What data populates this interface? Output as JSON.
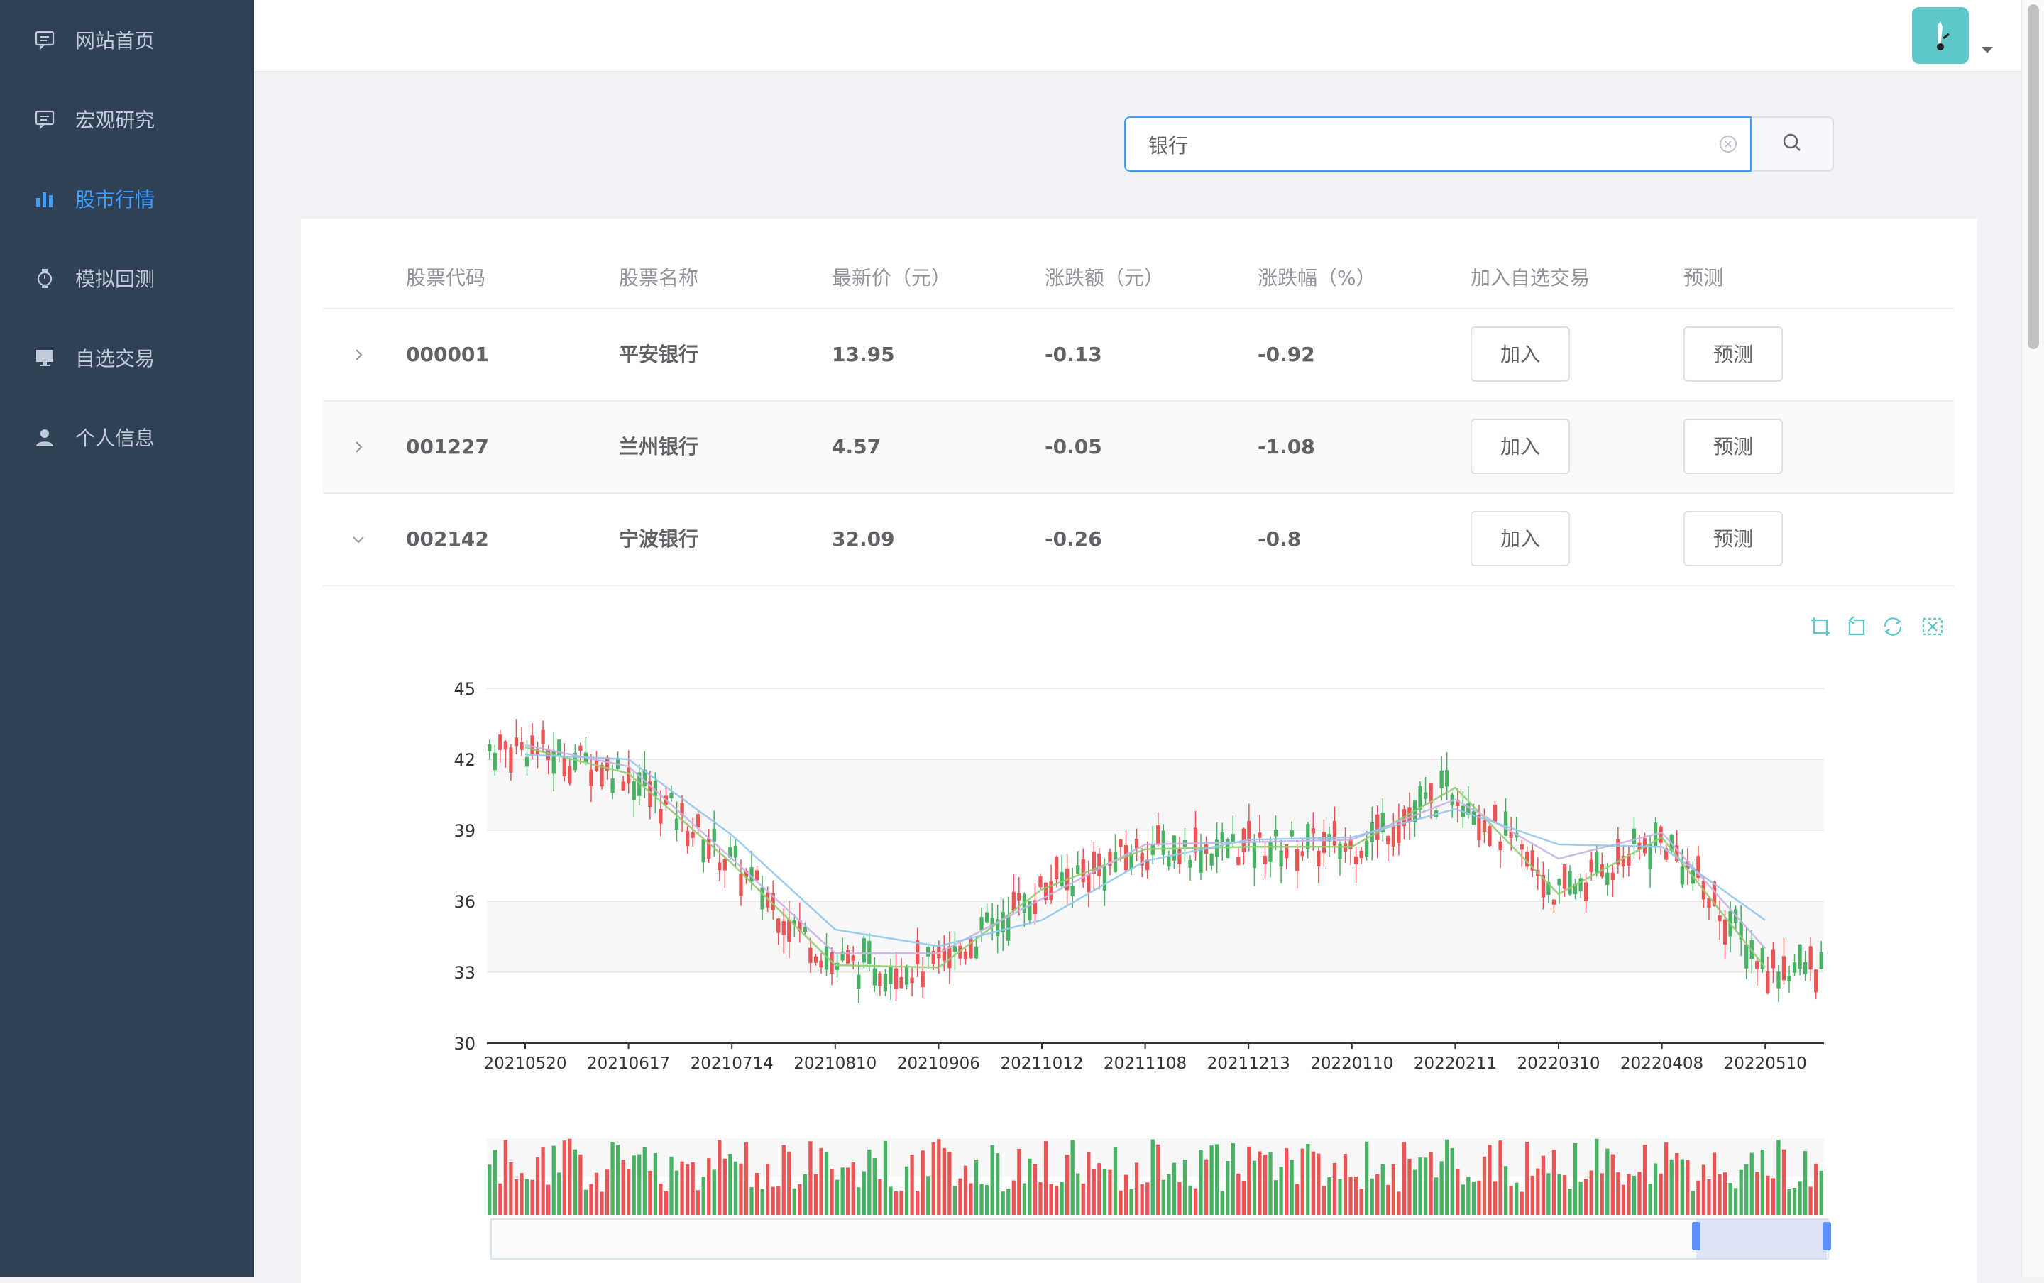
{
  "nav": [
    {
      "label": "网站首页",
      "icon": "message-icon"
    },
    {
      "label": "宏观研究",
      "icon": "message-icon"
    },
    {
      "label": "股市行情",
      "icon": "bar-chart-icon",
      "active": true
    },
    {
      "label": "模拟回测",
      "icon": "watch-icon"
    },
    {
      "label": "自选交易",
      "icon": "monitor-icon"
    },
    {
      "label": "个人信息",
      "icon": "user-icon"
    }
  ],
  "search": {
    "value": "银行"
  },
  "table": {
    "headers": [
      "股票代码",
      "股票名称",
      "最新价（元）",
      "涨跌额（元）",
      "涨跌幅（%）",
      "加入自选交易",
      "预测"
    ],
    "rows": [
      {
        "code": "000001",
        "name": "平安银行",
        "price": "13.95",
        "change": "-0.13",
        "pct": "-0.92",
        "add": "加入",
        "predict": "预测",
        "expanded": false
      },
      {
        "code": "001227",
        "name": "兰州银行",
        "price": "4.57",
        "change": "-0.05",
        "pct": "-1.08",
        "add": "加入",
        "predict": "预测",
        "expanded": false
      },
      {
        "code": "002142",
        "name": "宁波银行",
        "price": "32.09",
        "change": "-0.26",
        "pct": "-0.8",
        "add": "加入",
        "predict": "预测",
        "expanded": true
      }
    ]
  },
  "chart_data": {
    "type": "line",
    "title": "",
    "xlabel": "",
    "ylabel": "",
    "ylim": [
      30,
      45
    ],
    "yticks": [
      "45",
      "42",
      "39",
      "36",
      "33",
      "30"
    ],
    "categories": [
      "20210520",
      "20210617",
      "20210714",
      "20210810",
      "20210906",
      "20211012",
      "20211108",
      "20211213",
      "20220110",
      "20220211",
      "20220310",
      "20220408",
      "20220510"
    ],
    "series": [
      {
        "name": "",
        "values": [
          42.5,
          41.4,
          37.6,
          33.3,
          33.2,
          36.5,
          38.2,
          38.3,
          38.3,
          40.8,
          36.3,
          38.7,
          33.2
        ]
      },
      {
        "name": "",
        "values": [
          42.6,
          41.7,
          37.8,
          33.8,
          33.8,
          36.1,
          38.4,
          38.5,
          38.6,
          40.3,
          37.8,
          38.9,
          34.0
        ]
      },
      {
        "name": "",
        "values": [
          42.2,
          42.0,
          38.8,
          34.8,
          34.1,
          35.2,
          37.7,
          38.6,
          38.7,
          39.9,
          38.4,
          38.3,
          35.2
        ]
      }
    ],
    "colors": {
      "up": "#47b262",
      "down": "#eb5454",
      "ma": [
        "#91cc75",
        "#c7b3e6",
        "#91c7ec"
      ],
      "accent": "#409eff",
      "sidebar": "#304156"
    }
  }
}
